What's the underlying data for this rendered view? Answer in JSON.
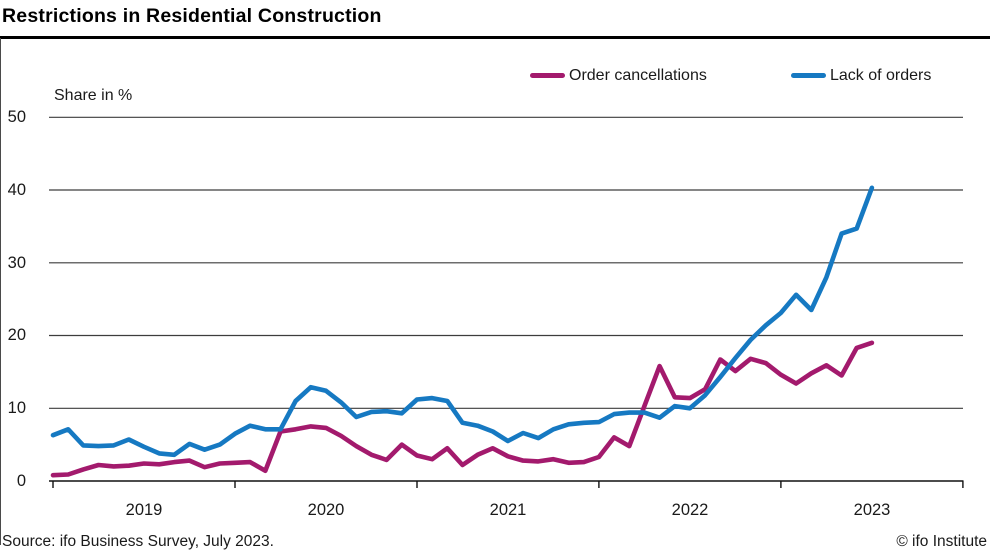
{
  "header": {
    "title": "Restrictions in Residential Construction"
  },
  "footer": {
    "source": "Source: ifo Business Survey, July 2023.",
    "copyright": "© ifo Institute"
  },
  "colors": {
    "magenta": "#a31a6d",
    "blue": "#1679c2",
    "grid": "#3d3d3d",
    "axis": "#111111"
  },
  "chart_data": {
    "type": "line",
    "title": "Restrictions in Residential Construction",
    "ylabel": "Share in %",
    "xlabel": "",
    "ylim": [
      0,
      50
    ],
    "yticks": [
      0,
      10,
      20,
      30,
      40,
      50
    ],
    "xticks_years": [
      "2019",
      "2020",
      "2021",
      "2022",
      "2023"
    ],
    "grid": "horizontal",
    "legend_position": "top-right",
    "x": [
      "2019-01",
      "2019-02",
      "2019-03",
      "2019-04",
      "2019-05",
      "2019-06",
      "2019-07",
      "2019-08",
      "2019-09",
      "2019-10",
      "2019-11",
      "2019-12",
      "2020-01",
      "2020-02",
      "2020-03",
      "2020-04",
      "2020-05",
      "2020-06",
      "2020-07",
      "2020-08",
      "2020-09",
      "2020-10",
      "2020-11",
      "2020-12",
      "2021-01",
      "2021-02",
      "2021-03",
      "2021-04",
      "2021-05",
      "2021-06",
      "2021-07",
      "2021-08",
      "2021-09",
      "2021-10",
      "2021-11",
      "2021-12",
      "2022-01",
      "2022-02",
      "2022-03",
      "2022-04",
      "2022-05",
      "2022-06",
      "2022-07",
      "2022-08",
      "2022-09",
      "2022-10",
      "2022-11",
      "2022-12",
      "2023-01",
      "2023-02",
      "2023-03",
      "2023-04",
      "2023-05",
      "2023-06",
      "2023-07"
    ],
    "series": [
      {
        "id": "order-cancellations",
        "name": "Order cancellations",
        "color": "#a31a6d",
        "values": [
          0.8,
          0.9,
          1.6,
          2.2,
          2.0,
          2.1,
          2.4,
          2.3,
          2.6,
          2.8,
          1.9,
          2.4,
          2.5,
          2.6,
          1.4,
          6.8,
          7.1,
          7.5,
          7.3,
          6.2,
          4.8,
          3.6,
          2.9,
          5.0,
          3.5,
          3.0,
          4.5,
          2.2,
          3.6,
          4.5,
          3.4,
          2.8,
          2.7,
          3.0,
          2.5,
          2.6,
          3.3,
          6.0,
          4.8,
          10.3,
          15.8,
          11.5,
          11.4,
          12.6,
          16.7,
          15.1,
          16.8,
          16.2,
          14.6,
          13.4,
          14.8,
          15.9,
          14.5,
          18.3,
          19.0
        ]
      },
      {
        "id": "lack-of-orders",
        "name": "Lack of orders",
        "color": "#1679c2",
        "values": [
          6.3,
          7.1,
          4.9,
          4.8,
          4.9,
          5.7,
          4.7,
          3.8,
          3.6,
          5.1,
          4.3,
          5.0,
          6.5,
          7.6,
          7.1,
          7.1,
          11.0,
          12.9,
          12.4,
          10.8,
          8.8,
          9.5,
          9.6,
          9.3,
          11.2,
          11.4,
          11.0,
          8.0,
          7.6,
          6.8,
          5.5,
          6.6,
          5.9,
          7.1,
          7.8,
          8.0,
          8.1,
          9.2,
          9.4,
          9.4,
          8.7,
          10.3,
          10.0,
          11.8,
          14.3,
          16.9,
          19.4,
          21.4,
          23.1,
          25.6,
          23.5,
          28.0,
          34.0,
          34.7,
          40.3
        ]
      }
    ]
  }
}
